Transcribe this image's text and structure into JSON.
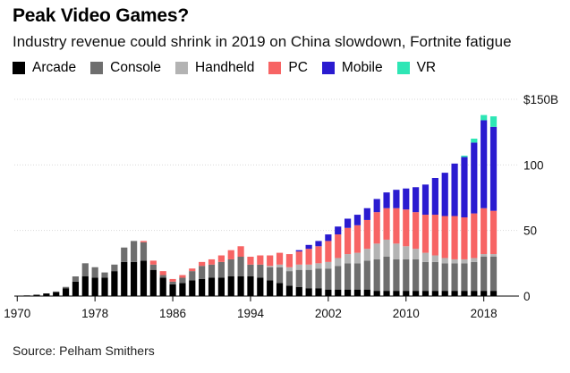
{
  "title": "Peak Video Games?",
  "subtitle": "Industry revenue could shrink in 2019 on China slowdown, Fortnite fatigue",
  "source": "Source: Pelham Smithers",
  "colors": {
    "Arcade": "#000000",
    "Console": "#6e6e6e",
    "Handheld": "#b3b3b3",
    "PC": "#f76464",
    "Mobile": "#2a1bd0",
    "VR": "#2ee6b5"
  },
  "chart_data": {
    "type": "bar",
    "stacked": true,
    "title": "Peak Video Games?",
    "subtitle": "Industry revenue could shrink in 2019 on China slowdown, Fortnite fatigue",
    "legend_position": "top-left",
    "grid": true,
    "y_axis_position": "right",
    "ylim": [
      0,
      150
    ],
    "y_ticks": [
      0,
      50,
      100,
      150
    ],
    "y_tick_labels": [
      "0",
      "50",
      "100",
      "$150B"
    ],
    "x_tick_labels": [
      "1970",
      "1978",
      "1986",
      "1994",
      "2002",
      "2010",
      "2018"
    ],
    "x": [
      1971,
      1972,
      1973,
      1974,
      1975,
      1976,
      1977,
      1978,
      1979,
      1980,
      1981,
      1982,
      1983,
      1984,
      1985,
      1986,
      1987,
      1988,
      1989,
      1990,
      1991,
      1992,
      1993,
      1994,
      1995,
      1996,
      1997,
      1998,
      1999,
      2000,
      2001,
      2002,
      2003,
      2004,
      2005,
      2006,
      2007,
      2008,
      2009,
      2010,
      2011,
      2012,
      2013,
      2014,
      2015,
      2016,
      2017,
      2018,
      2019
    ],
    "series": [
      {
        "name": "Arcade",
        "values": [
          0.5,
          1,
          2,
          3,
          6,
          11,
          15,
          14,
          14,
          19,
          26,
          26,
          27,
          20,
          14,
          9,
          10,
          12,
          13,
          14,
          14,
          15,
          15,
          15,
          14,
          12,
          10,
          8,
          7,
          6,
          6,
          5,
          5,
          5,
          5,
          5,
          4,
          4,
          4,
          4,
          4,
          4,
          4,
          4,
          4,
          4,
          4,
          4,
          4
        ]
      },
      {
        "name": "Console",
        "values": [
          0,
          0,
          0,
          0.5,
          1,
          4,
          10,
          8,
          4,
          5,
          11,
          16,
          14,
          4,
          2,
          2,
          4,
          7,
          10,
          10,
          12,
          13,
          15,
          9,
          10,
          10,
          12,
          11,
          13,
          14,
          15,
          16,
          18,
          20,
          20,
          22,
          24,
          26,
          24,
          24,
          24,
          22,
          22,
          21,
          21,
          21,
          22,
          26,
          26
        ]
      },
      {
        "name": "Handheld",
        "values": [
          0,
          0,
          0,
          0,
          0,
          0,
          0,
          0,
          0,
          0,
          0,
          0,
          0,
          0,
          0,
          0,
          0,
          0,
          0,
          0,
          0,
          0,
          0,
          0,
          0,
          1,
          2,
          3,
          4,
          4,
          4,
          5,
          6,
          7,
          8,
          9,
          12,
          13,
          12,
          10,
          8,
          7,
          5,
          4,
          3,
          3,
          3,
          2,
          2
        ]
      },
      {
        "name": "PC",
        "values": [
          0,
          0,
          0,
          0,
          0,
          0,
          0,
          0,
          0,
          0,
          0,
          0,
          1,
          3,
          3,
          2,
          2,
          2,
          3,
          4,
          5,
          7,
          8,
          6,
          7,
          8,
          9,
          10,
          10,
          12,
          13,
          16,
          18,
          20,
          21,
          22,
          24,
          24,
          27,
          28,
          28,
          29,
          31,
          32,
          33,
          32,
          34,
          35,
          33
        ]
      },
      {
        "name": "Mobile",
        "values": [
          0,
          0,
          0,
          0,
          0,
          0,
          0,
          0,
          0,
          0,
          0,
          0,
          0,
          0,
          0,
          0,
          0,
          0,
          0,
          0,
          0,
          0,
          0,
          0,
          0,
          0,
          0,
          0,
          1,
          3,
          4,
          5,
          6,
          7,
          8,
          9,
          10,
          12,
          14,
          16,
          19,
          23,
          28,
          33,
          40,
          46,
          54,
          67,
          64
        ]
      },
      {
        "name": "VR",
        "values": [
          0,
          0,
          0,
          0,
          0,
          0,
          0,
          0,
          0,
          0,
          0,
          0,
          0,
          0,
          0,
          0,
          0,
          0,
          0,
          0,
          0,
          0,
          0,
          0,
          0,
          0,
          0,
          0,
          0,
          0,
          0,
          0,
          0,
          0,
          0,
          0,
          0,
          0,
          0,
          0,
          0,
          0,
          0,
          0,
          0,
          1,
          3,
          4,
          8
        ]
      }
    ]
  }
}
